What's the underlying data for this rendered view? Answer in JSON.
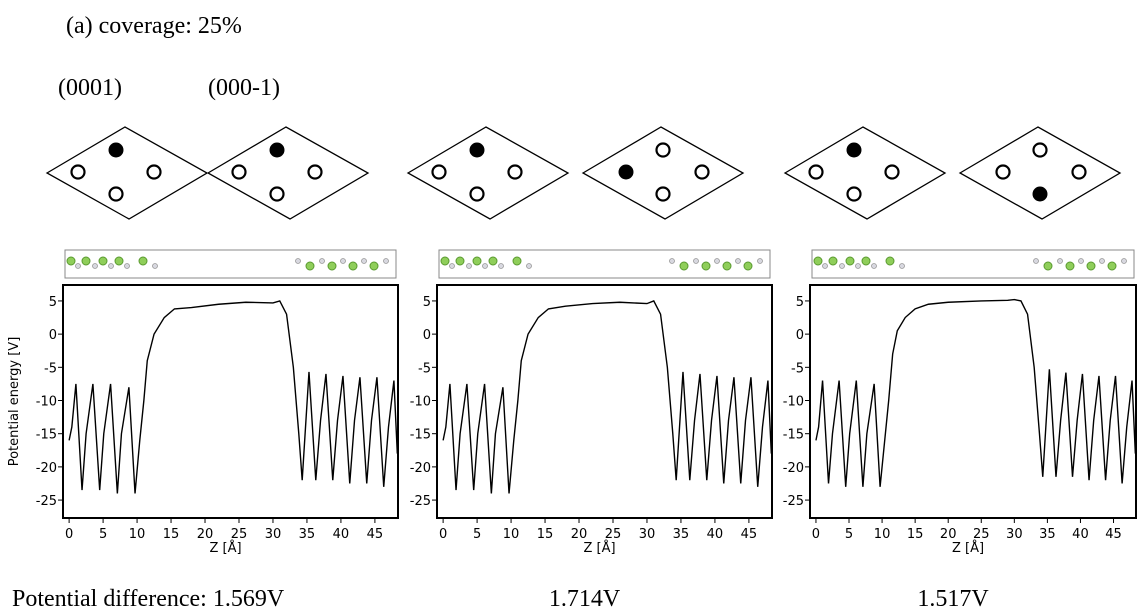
{
  "header": {
    "title": "(a) coverage: 25%",
    "labels": [
      "(0001)",
      "(000-1)"
    ]
  },
  "chart_data": [
    {
      "type": "line",
      "xlabel": "Z [Å]",
      "ylabel": "Potential energy [V]",
      "caption": "Potential difference: 1.569V",
      "xlim": [
        -0.9,
        48.4
      ],
      "ylim": [
        -27.7,
        7.4
      ],
      "xticks": [
        0,
        5,
        10,
        15,
        20,
        25,
        30,
        35,
        40,
        45
      ],
      "yticks": [
        5,
        0,
        -5,
        -10,
        -15,
        -20,
        -25
      ],
      "x": [
        0,
        0.4,
        1.0,
        1.9,
        2.5,
        3.5,
        4.5,
        5.1,
        6.1,
        7.1,
        7.7,
        8.8,
        9.7,
        10.4,
        11.0,
        11.5,
        12.5,
        14,
        15.5,
        18,
        22,
        26,
        30,
        31,
        32,
        33,
        33.8,
        34.3,
        35.3,
        36.3,
        37.0,
        37.8,
        38.8,
        39.5,
        40.3,
        41.3,
        42.0,
        42.8,
        43.8,
        44.5,
        45.3,
        46.3,
        47.0,
        47.8,
        48.3
      ],
      "values": [
        -16,
        -14,
        -7.5,
        -23.5,
        -15,
        -7.5,
        -23.5,
        -15,
        -7.5,
        -24,
        -15,
        -8,
        -24,
        -16,
        -10,
        -4,
        0,
        2.5,
        3.8,
        4,
        4.5,
        4.8,
        4.7,
        5,
        3,
        -5,
        -15,
        -22,
        -5.7,
        -22,
        -13,
        -6,
        -22,
        -13,
        -6.3,
        -22.5,
        -13,
        -6.5,
        -22.5,
        -13,
        -6.5,
        -23,
        -14,
        -7,
        -18
      ]
    },
    {
      "type": "line",
      "xlabel": "Z [Å]",
      "caption": "1.714V",
      "xlim": [
        -0.9,
        48.4
      ],
      "ylim": [
        -27.7,
        7.4
      ],
      "xticks": [
        0,
        5,
        10,
        15,
        20,
        25,
        30,
        35,
        40,
        45
      ],
      "yticks": [
        5,
        0,
        -5,
        -10,
        -15,
        -20,
        -25
      ],
      "x": [
        0,
        0.4,
        1.0,
        1.9,
        2.5,
        3.5,
        4.5,
        5.1,
        6.1,
        7.1,
        7.7,
        8.8,
        9.7,
        10.4,
        11.0,
        11.5,
        12.5,
        14,
        15.5,
        18,
        22,
        26,
        30,
        31,
        32,
        33,
        33.8,
        34.3,
        35.3,
        36.3,
        37.0,
        37.8,
        38.8,
        39.5,
        40.3,
        41.3,
        42.0,
        42.8,
        43.8,
        44.5,
        45.3,
        46.3,
        47.0,
        47.8,
        48.3
      ],
      "values": [
        -16,
        -14,
        -7.5,
        -23.5,
        -15,
        -7.5,
        -23.5,
        -15,
        -7.5,
        -24,
        -15,
        -8,
        -24,
        -16,
        -10,
        -4,
        0,
        2.5,
        3.8,
        4.2,
        4.6,
        4.8,
        4.6,
        5,
        3,
        -5,
        -15,
        -22,
        -5.7,
        -22,
        -13,
        -6,
        -22,
        -13,
        -6.3,
        -22.5,
        -13,
        -6.5,
        -22.5,
        -13,
        -6.5,
        -23,
        -14,
        -7,
        -18
      ]
    },
    {
      "type": "line",
      "xlabel": "Z [Å]",
      "caption": "1.517V",
      "xlim": [
        -0.9,
        48.4
      ],
      "ylim": [
        -27.7,
        7.4
      ],
      "xticks": [
        0,
        5,
        10,
        15,
        20,
        25,
        30,
        35,
        40,
        45
      ],
      "yticks": [
        5,
        0,
        -5,
        -10,
        -15,
        -20,
        -25
      ],
      "x": [
        0,
        0.4,
        1.0,
        1.9,
        2.5,
        3.5,
        4.5,
        5.1,
        6.1,
        7.1,
        7.7,
        8.8,
        9.7,
        10.4,
        11.0,
        11.6,
        12.3,
        13.5,
        15,
        17,
        20,
        25,
        29,
        30,
        31,
        32,
        33,
        33.8,
        34.3,
        35.3,
        36.3,
        37.0,
        37.8,
        38.8,
        39.5,
        40.3,
        41.3,
        42.0,
        42.8,
        43.8,
        44.5,
        45.3,
        46.3,
        47.0,
        47.8,
        48.3
      ],
      "values": [
        -16,
        -14,
        -7,
        -22.5,
        -15,
        -7,
        -23,
        -15,
        -7,
        -23,
        -15,
        -7.5,
        -23,
        -16,
        -10,
        -3,
        0.5,
        2.5,
        3.8,
        4.5,
        4.8,
        5,
        5.1,
        5.2,
        5,
        3,
        -5,
        -15,
        -21.5,
        -5.3,
        -21.5,
        -13,
        -5.8,
        -21.5,
        -13,
        -6,
        -22,
        -13,
        -6.3,
        -22,
        -13,
        -6.3,
        -22.5,
        -14,
        -7,
        -18
      ]
    }
  ]
}
